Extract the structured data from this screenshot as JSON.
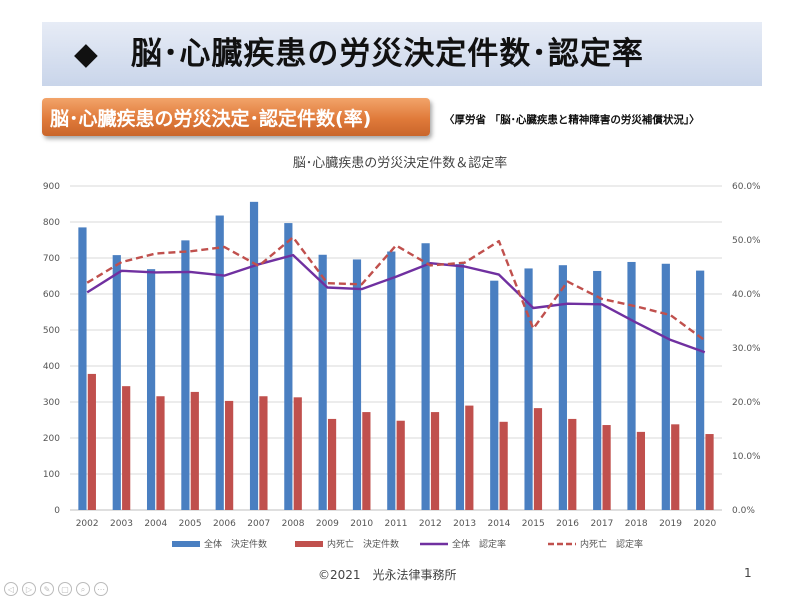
{
  "slide": {
    "title": "◆　脳･心臓疾患の労災決定件数･認定率",
    "subtitle": "脳･心臓疾患の労災決定･認定件数(率)",
    "source": "〈厚労省 「脳･心臓疾患と精神障害の労災補償状況」〉",
    "footer": "©2021　光永法律事務所",
    "page_number": "1"
  },
  "nav": {
    "icons": [
      "prev-icon",
      "next-icon",
      "pen-icon",
      "slides-icon",
      "zoom-icon",
      "more-icon"
    ],
    "symbols": [
      "◁",
      "▷",
      "✎",
      "▢",
      "⌕",
      "⋯"
    ]
  },
  "chart_data": {
    "type": "bar",
    "title": "脳･心臓疾患の労災決定件数＆認定率",
    "categories": [
      "2002",
      "2003",
      "2004",
      "2005",
      "2006",
      "2007",
      "2008",
      "2009",
      "2010",
      "2011",
      "2012",
      "2013",
      "2014",
      "2015",
      "2016",
      "2017",
      "2018",
      "2019",
      "2020"
    ],
    "series": [
      {
        "name": "全体　決定件数",
        "type": "bar",
        "axis": "left",
        "color": "#4a7fc1",
        "values": [
          785,
          708,
          669,
          749,
          818,
          856,
          797,
          709,
          696,
          718,
          741,
          683,
          637,
          671,
          680,
          664,
          689,
          684,
          665
        ]
      },
      {
        "name": "内死亡　決定件数",
        "type": "bar",
        "axis": "left",
        "color": "#c0504d",
        "values": [
          378,
          344,
          316,
          328,
          303,
          316,
          313,
          253,
          272,
          248,
          272,
          290,
          245,
          283,
          253,
          236,
          217,
          238,
          211
        ]
      },
      {
        "name": "全体　認定率",
        "type": "line",
        "axis": "right",
        "color": "#7030a0",
        "dash": false,
        "values": [
          40.3,
          44.3,
          44.0,
          44.1,
          43.4,
          45.5,
          47.2,
          41.2,
          40.9,
          43.2,
          45.7,
          45.1,
          43.6,
          37.4,
          38.2,
          38.1,
          34.7,
          31.5,
          29.2
        ]
      },
      {
        "name": "内死亡　認定率",
        "type": "line",
        "axis": "right",
        "color": "#c0504d",
        "dash": true,
        "values": [
          42.1,
          45.9,
          47.5,
          47.9,
          48.7,
          45.2,
          50.5,
          42.0,
          41.8,
          49.0,
          45.3,
          45.8,
          49.8,
          33.6,
          42.3,
          39.1,
          37.7,
          36.1,
          31.4
        ]
      }
    ],
    "y_left": {
      "min": 0,
      "max": 900,
      "ticks": [
        0,
        100,
        200,
        300,
        400,
        500,
        600,
        700,
        800,
        900
      ]
    },
    "y_right": {
      "min": 0,
      "max": 60,
      "ticks": [
        "0.0%",
        "10.0%",
        "20.0%",
        "30.0%",
        "40.0%",
        "50.0%",
        "60.0%"
      ]
    },
    "grid": true,
    "legend_position": "bottom"
  }
}
